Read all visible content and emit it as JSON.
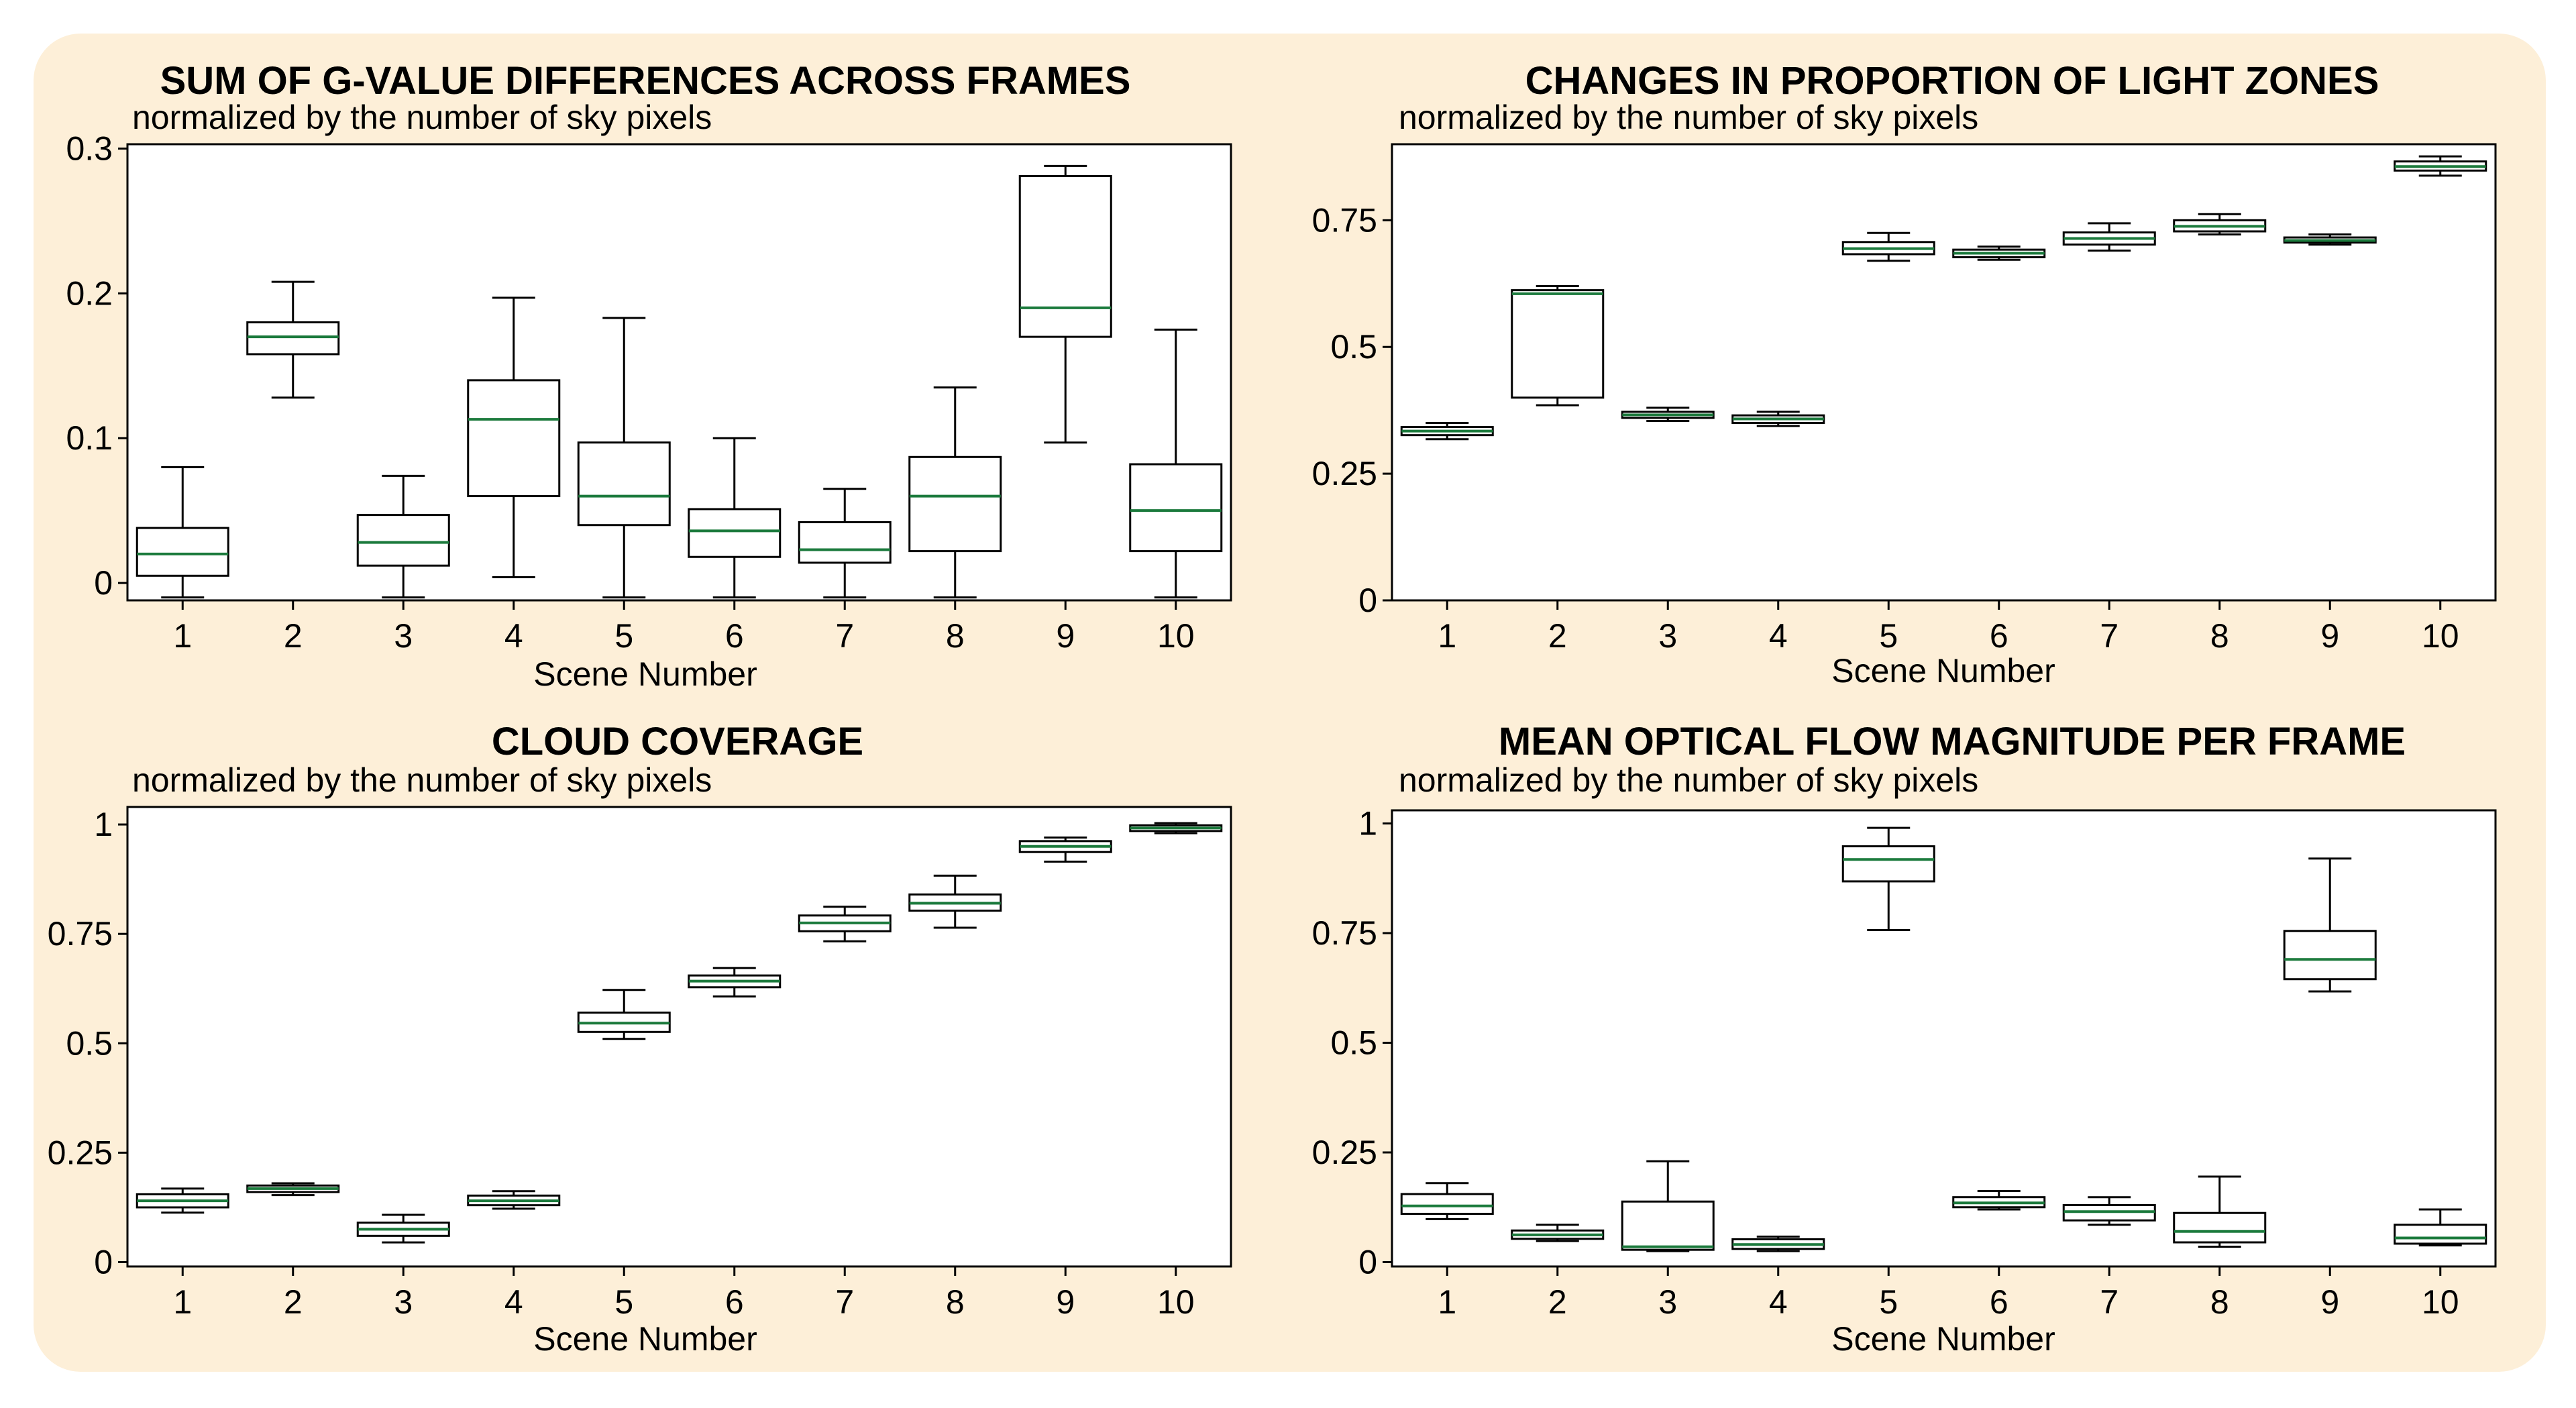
{
  "colors": {
    "background_panel": "#fdefd8",
    "plot_bg": "#ffffff",
    "box": "#000000",
    "median": "#1b7a3c"
  },
  "chart_data": [
    {
      "type": "box",
      "title": "SUM OF G-VALUE DIFFERENCES ACROSS FRAMES",
      "subtitle": "normalized by the number of sky pixels",
      "xlabel": "Scene Number",
      "ylabel": "",
      "ylim": [
        -0.012,
        0.303
      ],
      "yticks": [
        0,
        0.1,
        0.2,
        0.3
      ],
      "ytick_labels": [
        "0",
        "0.1",
        "0.2",
        "0.3"
      ],
      "categories": [
        "1",
        "2",
        "3",
        "4",
        "5",
        "6",
        "7",
        "8",
        "9",
        "10"
      ],
      "boxes": [
        {
          "whislo": -0.01,
          "q1": 0.005,
          "med": 0.02,
          "q3": 0.038,
          "whishi": 0.08
        },
        {
          "whislo": 0.128,
          "q1": 0.158,
          "med": 0.17,
          "q3": 0.18,
          "whishi": 0.208
        },
        {
          "whislo": -0.01,
          "q1": 0.012,
          "med": 0.028,
          "q3": 0.047,
          "whishi": 0.074
        },
        {
          "whislo": 0.004,
          "q1": 0.06,
          "med": 0.113,
          "q3": 0.14,
          "whishi": 0.197
        },
        {
          "whislo": -0.01,
          "q1": 0.04,
          "med": 0.06,
          "q3": 0.097,
          "whishi": 0.183
        },
        {
          "whislo": -0.01,
          "q1": 0.018,
          "med": 0.036,
          "q3": 0.051,
          "whishi": 0.1
        },
        {
          "whislo": -0.01,
          "q1": 0.014,
          "med": 0.023,
          "q3": 0.042,
          "whishi": 0.065
        },
        {
          "whislo": -0.01,
          "q1": 0.022,
          "med": 0.06,
          "q3": 0.087,
          "whishi": 0.135
        },
        {
          "whislo": 0.097,
          "q1": 0.17,
          "med": 0.19,
          "q3": 0.281,
          "whishi": 0.288
        },
        {
          "whislo": -0.01,
          "q1": 0.022,
          "med": 0.05,
          "q3": 0.082,
          "whishi": 0.175
        }
      ]
    },
    {
      "type": "box",
      "title": "CHANGES IN PROPORTION OF LIGHT ZONES",
      "subtitle": "normalized by the number of sky pixels",
      "xlabel": "Scene Number",
      "ylabel": "",
      "ylim": [
        0,
        0.9
      ],
      "yticks": [
        0,
        0.25,
        0.5,
        0.75
      ],
      "ytick_labels": [
        "0",
        "0.25",
        "0.5",
        "0.75"
      ],
      "categories": [
        "1",
        "2",
        "3",
        "4",
        "5",
        "6",
        "7",
        "8",
        "9",
        "10"
      ],
      "boxes": [
        {
          "whislo": 0.318,
          "q1": 0.326,
          "med": 0.334,
          "q3": 0.342,
          "whishi": 0.35
        },
        {
          "whislo": 0.385,
          "q1": 0.4,
          "med": 0.605,
          "q3": 0.612,
          "whishi": 0.62
        },
        {
          "whislo": 0.354,
          "q1": 0.36,
          "med": 0.366,
          "q3": 0.372,
          "whishi": 0.38
        },
        {
          "whislo": 0.344,
          "q1": 0.35,
          "med": 0.358,
          "q3": 0.365,
          "whishi": 0.372
        },
        {
          "whislo": 0.67,
          "q1": 0.683,
          "med": 0.694,
          "q3": 0.707,
          "whishi": 0.725
        },
        {
          "whislo": 0.672,
          "q1": 0.677,
          "med": 0.685,
          "q3": 0.692,
          "whishi": 0.698
        },
        {
          "whislo": 0.69,
          "q1": 0.702,
          "med": 0.714,
          "q3": 0.726,
          "whishi": 0.744
        },
        {
          "whislo": 0.722,
          "q1": 0.728,
          "med": 0.738,
          "q3": 0.75,
          "whishi": 0.762
        },
        {
          "whislo": 0.702,
          "q1": 0.706,
          "med": 0.71,
          "q3": 0.716,
          "whishi": 0.722
        },
        {
          "whislo": 0.838,
          "q1": 0.848,
          "med": 0.856,
          "q3": 0.866,
          "whishi": 0.876
        }
      ]
    },
    {
      "type": "box",
      "title": "CLOUD COVERAGE",
      "subtitle": "normalized by the number of sky pixels",
      "xlabel": "Scene Number",
      "ylabel": "",
      "ylim": [
        -0.01,
        1.04
      ],
      "yticks": [
        0,
        0.25,
        0.5,
        0.75,
        1
      ],
      "ytick_labels": [
        "0",
        "0.25",
        "0.5",
        "0.75",
        "1"
      ],
      "categories": [
        "1",
        "2",
        "3",
        "4",
        "5",
        "6",
        "7",
        "8",
        "9",
        "10"
      ],
      "boxes": [
        {
          "whislo": 0.113,
          "q1": 0.125,
          "med": 0.14,
          "q3": 0.155,
          "whishi": 0.168
        },
        {
          "whislo": 0.153,
          "q1": 0.16,
          "med": 0.168,
          "q3": 0.175,
          "whishi": 0.18
        },
        {
          "whislo": 0.045,
          "q1": 0.06,
          "med": 0.075,
          "q3": 0.09,
          "whishi": 0.108
        },
        {
          "whislo": 0.122,
          "q1": 0.13,
          "med": 0.14,
          "q3": 0.152,
          "whishi": 0.162
        },
        {
          "whislo": 0.51,
          "q1": 0.526,
          "med": 0.546,
          "q3": 0.57,
          "whishi": 0.622
        },
        {
          "whislo": 0.607,
          "q1": 0.628,
          "med": 0.642,
          "q3": 0.655,
          "whishi": 0.672
        },
        {
          "whislo": 0.733,
          "q1": 0.756,
          "med": 0.775,
          "q3": 0.792,
          "whishi": 0.812
        },
        {
          "whislo": 0.764,
          "q1": 0.803,
          "med": 0.82,
          "q3": 0.84,
          "whishi": 0.883
        },
        {
          "whislo": 0.915,
          "q1": 0.937,
          "med": 0.95,
          "q3": 0.962,
          "whishi": 0.97
        },
        {
          "whislo": 0.98,
          "q1": 0.985,
          "med": 0.992,
          "q3": 0.998,
          "whishi": 1.003
        }
      ]
    },
    {
      "type": "box",
      "title": "MEAN OPTICAL FLOW MAGNITUDE PER FRAME",
      "subtitle": "normalized by the number of sky pixels",
      "xlabel": "Scene Number",
      "ylabel": "",
      "ylim": [
        -0.01,
        1.03
      ],
      "yticks": [
        0,
        0.25,
        0.5,
        0.75,
        1
      ],
      "ytick_labels": [
        "0",
        "0.25",
        "0.5",
        "0.75",
        "1"
      ],
      "categories": [
        "1",
        "2",
        "3",
        "4",
        "5",
        "6",
        "7",
        "8",
        "9",
        "10"
      ],
      "boxes": [
        {
          "whislo": 0.098,
          "q1": 0.11,
          "med": 0.128,
          "q3": 0.155,
          "whishi": 0.18
        },
        {
          "whislo": 0.048,
          "q1": 0.053,
          "med": 0.062,
          "q3": 0.072,
          "whishi": 0.085
        },
        {
          "whislo": 0.025,
          "q1": 0.028,
          "med": 0.035,
          "q3": 0.138,
          "whishi": 0.23
        },
        {
          "whislo": 0.025,
          "q1": 0.03,
          "med": 0.04,
          "q3": 0.052,
          "whishi": 0.058
        },
        {
          "whislo": 0.757,
          "q1": 0.868,
          "med": 0.918,
          "q3": 0.948,
          "whishi": 0.99
        },
        {
          "whislo": 0.12,
          "q1": 0.125,
          "med": 0.135,
          "q3": 0.148,
          "whishi": 0.162
        },
        {
          "whislo": 0.085,
          "q1": 0.095,
          "med": 0.115,
          "q3": 0.13,
          "whishi": 0.148
        },
        {
          "whislo": 0.035,
          "q1": 0.045,
          "med": 0.07,
          "q3": 0.112,
          "whishi": 0.195
        },
        {
          "whislo": 0.617,
          "q1": 0.645,
          "med": 0.69,
          "q3": 0.755,
          "whishi": 0.92
        },
        {
          "whislo": 0.038,
          "q1": 0.042,
          "med": 0.055,
          "q3": 0.085,
          "whishi": 0.12
        }
      ]
    }
  ]
}
